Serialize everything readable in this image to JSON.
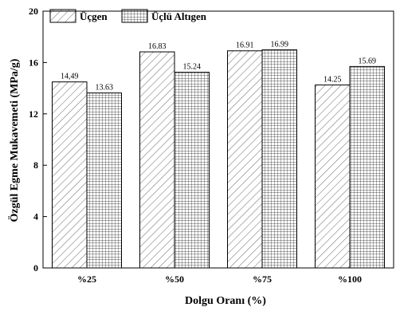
{
  "chart_data": {
    "type": "bar",
    "title": "",
    "xlabel": "Dolgu Oranı (%)",
    "ylabel": "Özgül Egme Mukavemeti (MPa/g)",
    "categories": [
      "%25",
      "%50",
      "%75",
      "%100"
    ],
    "series": [
      {
        "name": "Üçgen",
        "values": [
          14.49,
          16.83,
          16.91,
          14.25
        ],
        "labels": [
          "14,49",
          "16.83",
          "16.91",
          "14.25"
        ],
        "pattern": "diagonal-hatch"
      },
      {
        "name": "Üçlü Altıgen",
        "values": [
          13.63,
          15.24,
          16.99,
          15.69
        ],
        "labels": [
          "13.63",
          "15.24",
          "16.99",
          "15.69"
        ],
        "pattern": "crosshatch-grid"
      }
    ],
    "ylim": [
      0,
      20
    ],
    "yticks": [
      0,
      4,
      8,
      12,
      16,
      20
    ],
    "grid": false,
    "legend_position": "top-left"
  }
}
